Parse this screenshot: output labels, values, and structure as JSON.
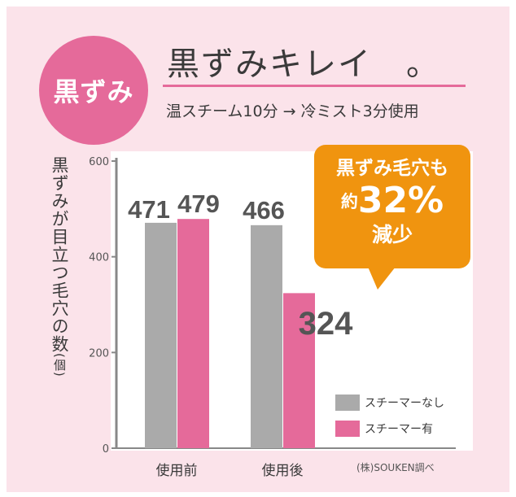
{
  "badge": {
    "label": "黒ずみ"
  },
  "headline": {
    "title": "黒ずみキレイ　。"
  },
  "subtitle": "温スチーム10分 → 冷ミスト3分使用",
  "callout": {
    "line1": "黒ずみ毛穴も",
    "prefix": "約",
    "percent": "32%",
    "line3": "減少"
  },
  "source": "(株)SOUKEN調べ",
  "colors": {
    "pink": "#e56a9a",
    "gray": "#aaaaaa",
    "orange": "#f0940f",
    "background": "#fbe3ea"
  },
  "chart_data": {
    "type": "bar",
    "ylabel": "黒ずみが目立つ毛穴の数",
    "yunit": "(個)",
    "categories": [
      "使用前",
      "使用後"
    ],
    "series": [
      {
        "name": "スチーマーなし",
        "values": [
          471,
          466
        ],
        "color": "#aaaaaa"
      },
      {
        "name": "スチーマー有",
        "values": [
          479,
          324
        ],
        "color": "#e56a9a"
      }
    ],
    "ylim": [
      0,
      600
    ],
    "yticks": [
      0,
      200,
      400,
      600
    ],
    "data_labels": [
      [
        "471",
        "479"
      ],
      [
        "466",
        "324"
      ]
    ],
    "grid": false,
    "legend_position": "bottom-right"
  }
}
